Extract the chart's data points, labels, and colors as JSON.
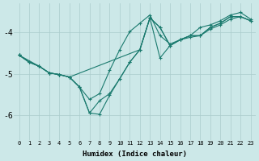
{
  "xlabel": "Humidex (Indice chaleur)",
  "bg_color": "#cce8e8",
  "grid_color": "#aacccc",
  "line_color": "#1a7a6e",
  "xlim": [
    -0.5,
    23.5
  ],
  "ylim": [
    -6.6,
    -3.3
  ],
  "yticks": [
    -6,
    -5,
    -4
  ],
  "xticks": [
    0,
    1,
    2,
    3,
    4,
    5,
    6,
    7,
    8,
    9,
    10,
    11,
    12,
    13,
    14,
    15,
    16,
    17,
    18,
    19,
    20,
    21,
    22,
    23
  ],
  "line1_x": [
    0,
    1,
    2,
    3,
    4,
    5,
    6,
    7,
    8,
    9,
    10,
    11,
    12,
    13,
    14,
    15,
    16,
    17,
    18,
    19,
    20,
    21,
    22,
    23
  ],
  "line1_y": [
    -4.55,
    -4.72,
    -4.82,
    -4.98,
    -5.02,
    -5.08,
    -5.32,
    -5.95,
    -5.98,
    -5.52,
    -5.12,
    -4.72,
    -4.42,
    -3.65,
    -3.88,
    -4.32,
    -4.18,
    -4.08,
    -4.08,
    -3.88,
    -3.78,
    -3.62,
    -3.62,
    -3.72
  ],
  "line2_x": [
    0,
    2,
    3,
    4,
    5,
    12,
    13,
    14,
    15,
    16,
    17,
    18,
    19,
    20,
    21,
    22,
    23
  ],
  "line2_y": [
    -4.55,
    -4.82,
    -4.98,
    -5.02,
    -5.08,
    -4.42,
    -3.65,
    -3.88,
    -4.32,
    -4.18,
    -4.08,
    -4.08,
    -3.88,
    -3.78,
    -3.62,
    -3.62,
    -3.72
  ],
  "line3_x": [
    0,
    1,
    2,
    3,
    4,
    5,
    6,
    7,
    8,
    9,
    10,
    11,
    12,
    13,
    14,
    15,
    16,
    17,
    18,
    19,
    20,
    21,
    22,
    23
  ],
  "line3_y": [
    -4.55,
    -4.72,
    -4.82,
    -4.98,
    -5.02,
    -5.08,
    -5.32,
    -5.95,
    -5.65,
    -5.48,
    -5.12,
    -4.72,
    -4.42,
    -3.65,
    -4.62,
    -4.32,
    -4.18,
    -4.12,
    -4.08,
    -3.92,
    -3.82,
    -3.68,
    -3.62,
    -3.72
  ],
  "line4_x": [
    0,
    1,
    2,
    3,
    4,
    5,
    6,
    7,
    8,
    9,
    10,
    11,
    12,
    13,
    14,
    15,
    16,
    17,
    18,
    19,
    20,
    21,
    22,
    23
  ],
  "line4_y": [
    -4.55,
    -4.72,
    -4.82,
    -4.98,
    -5.02,
    -5.08,
    -5.32,
    -5.62,
    -5.48,
    -4.92,
    -4.42,
    -3.98,
    -3.78,
    -3.58,
    -4.08,
    -4.28,
    -4.18,
    -4.08,
    -3.88,
    -3.82,
    -3.72,
    -3.58,
    -3.52,
    -3.68
  ]
}
